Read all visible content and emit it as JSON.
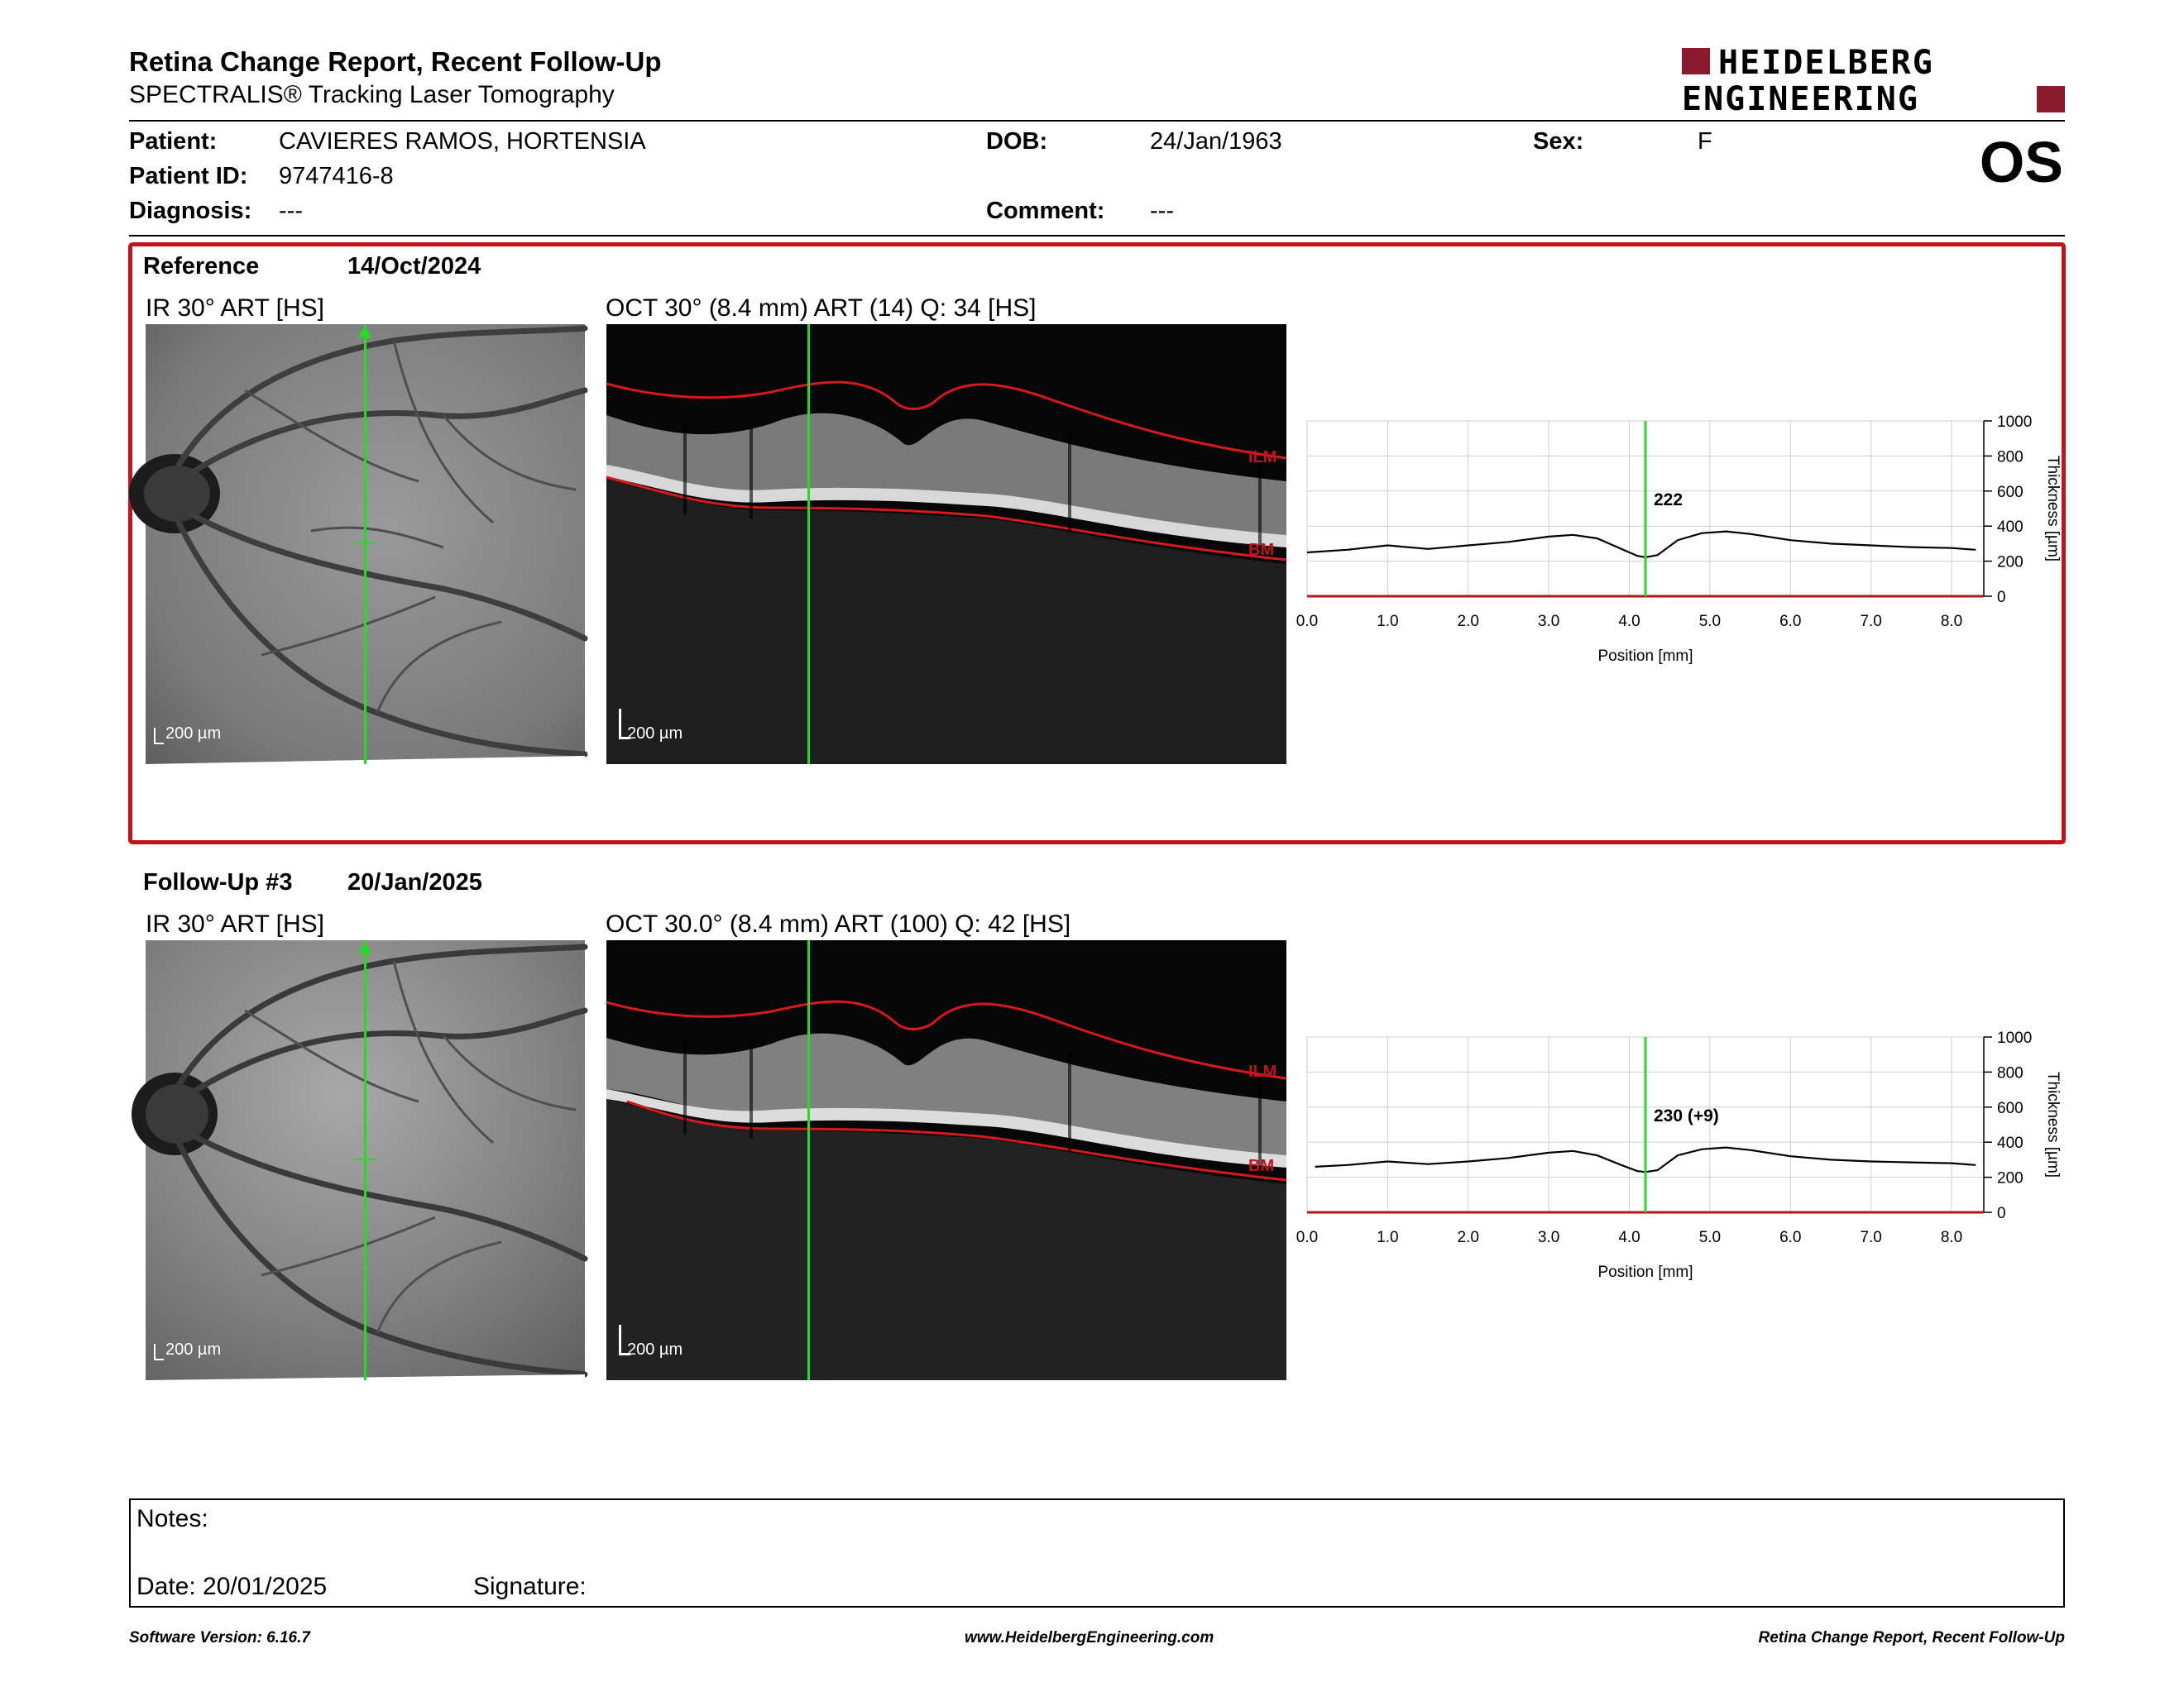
{
  "header": {
    "title": "Retina Change Report, Recent Follow-Up",
    "subtitle": "SPECTRALIS® Tracking Laser Tomography",
    "logo_line1": "HEIDELBERG",
    "logo_line2": "ENGINEERING",
    "eye": "OS"
  },
  "patient": {
    "patient_label": "Patient:",
    "patient_name": "CAVIERES RAMOS, HORTENSIA",
    "dob_label": "DOB:",
    "dob": "24/Jan/1963",
    "sex_label": "Sex:",
    "sex": "F",
    "id_label": "Patient ID:",
    "id": "9747416-8",
    "diagnosis_label": "Diagnosis:",
    "diagnosis": "---",
    "comment_label": "Comment:",
    "comment": "---"
  },
  "reference": {
    "label": "Reference",
    "date": "14/Oct/2024",
    "ir_title": "IR 30° ART [HS]",
    "oct_title": "OCT 30° (8.4 mm) ART (14) Q: 34 [HS]",
    "scale_ir": "200 µm",
    "scale_oct": "200 µm",
    "ilm": "ILM",
    "bm": "BM"
  },
  "followup": {
    "label": "Follow-Up #3",
    "date": "20/Jan/2025",
    "ir_title": "IR 30° ART [HS]",
    "oct_title": "OCT 30.0° (8.4 mm) ART (100) Q: 42 [HS]",
    "scale_ir": "200 µm",
    "scale_oct": "200 µm",
    "ilm": "ILM",
    "bm": "BM"
  },
  "chart_data": [
    {
      "type": "line",
      "xlabel": "Position [mm]",
      "ylabel": "Thickness [µm]",
      "xlim": [
        0,
        8.4
      ],
      "ylim": [
        0,
        1000
      ],
      "x_ticks": [
        "0.0",
        "1.0",
        "2.0",
        "3.0",
        "4.0",
        "5.0",
        "6.0",
        "7.0",
        "8.0"
      ],
      "y_ticks": [
        "0",
        "200",
        "400",
        "600",
        "800",
        "1000"
      ],
      "grid": true,
      "cursor_x": 4.2,
      "cursor_label": "222",
      "x": [
        0.0,
        0.5,
        1.0,
        1.5,
        2.0,
        2.5,
        3.0,
        3.3,
        3.6,
        3.9,
        4.1,
        4.2,
        4.35,
        4.6,
        4.9,
        5.2,
        5.5,
        6.0,
        6.5,
        7.0,
        7.5,
        8.0,
        8.3
      ],
      "values": [
        250,
        265,
        290,
        270,
        290,
        310,
        340,
        350,
        330,
        270,
        230,
        222,
        235,
        320,
        360,
        370,
        355,
        320,
        300,
        290,
        280,
        275,
        265
      ]
    },
    {
      "type": "line",
      "xlabel": "Position [mm]",
      "ylabel": "Thickness [µm]",
      "xlim": [
        0,
        8.4
      ],
      "ylim": [
        0,
        1000
      ],
      "x_ticks": [
        "0.0",
        "1.0",
        "2.0",
        "3.0",
        "4.0",
        "5.0",
        "6.0",
        "7.0",
        "8.0"
      ],
      "y_ticks": [
        "0",
        "200",
        "400",
        "600",
        "800",
        "1000"
      ],
      "grid": true,
      "cursor_x": 4.2,
      "cursor_label": "230 (+9)",
      "x": [
        0.1,
        0.5,
        1.0,
        1.5,
        2.0,
        2.5,
        3.0,
        3.3,
        3.6,
        3.9,
        4.1,
        4.2,
        4.35,
        4.6,
        4.9,
        5.2,
        5.5,
        6.0,
        6.5,
        7.0,
        7.5,
        8.0,
        8.3
      ],
      "values": [
        260,
        270,
        290,
        275,
        290,
        310,
        340,
        350,
        325,
        270,
        235,
        230,
        240,
        325,
        360,
        370,
        355,
        320,
        300,
        290,
        285,
        280,
        270
      ]
    }
  ],
  "notes": {
    "label": "Notes:",
    "date_label": "Date: 20/01/2025",
    "signature_label": "Signature:"
  },
  "footer": {
    "left": "Software Version: 6.16.7",
    "center": "www.HeidelbergEngineering.com",
    "right": "Retina Change Report, Recent Follow-Up"
  }
}
